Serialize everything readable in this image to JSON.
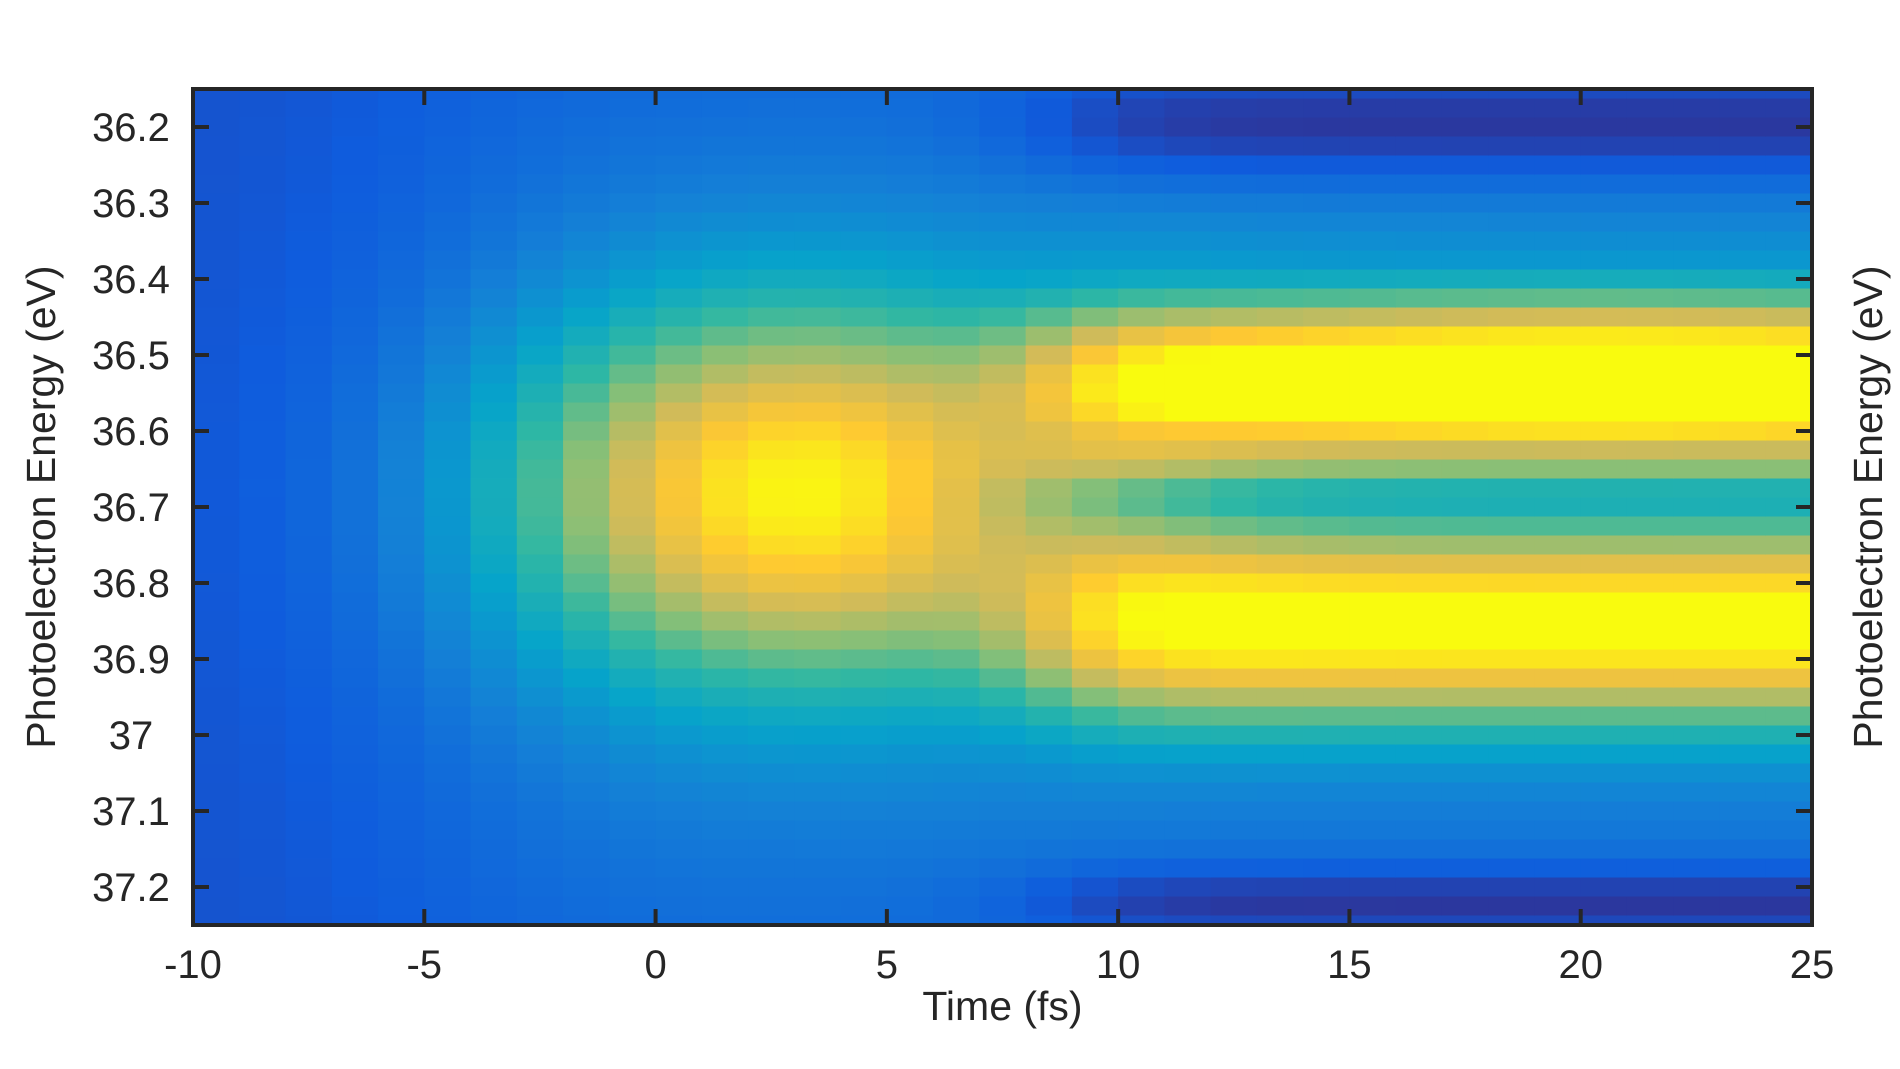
{
  "chart_data": {
    "type": "heatmap",
    "title": "",
    "xlabel": "Time (fs)",
    "ylabel": "Photoelectron Energy (eV)",
    "ylabel_right": "Photoelectron Energy (eV)",
    "xlim": [
      -10,
      25
    ],
    "ylim": [
      36.15,
      37.25
    ],
    "y_reversed": true,
    "x_ticks": [
      -10,
      -5,
      0,
      5,
      10,
      15,
      20,
      25
    ],
    "x_tick_labels": [
      "-10",
      "-5",
      "0",
      "5",
      "10",
      "15",
      "20",
      "25"
    ],
    "y_ticks": [
      36.2,
      36.3,
      36.4,
      36.5,
      36.6,
      36.7,
      36.8,
      36.9,
      37,
      37.1,
      37.2
    ],
    "y_tick_labels": [
      "36.2",
      "36.3",
      "36.4",
      "36.5",
      "36.6",
      "36.7",
      "36.8",
      "36.9",
      "37",
      "37.1",
      "37.2"
    ],
    "grid": false,
    "colormap": "parula",
    "colorscale": [
      "#352a87",
      "#0f5cdd",
      "#1481d6",
      "#06a4ca",
      "#2eb7a4",
      "#87bf77",
      "#d1bb59",
      "#fec832",
      "#f9fb0e"
    ],
    "intensity_max": 1.0,
    "x": [
      -9.5,
      -8.5,
      -7.5,
      -6.5,
      -5.5,
      -4.5,
      -3.5,
      -2.5,
      -1.5,
      -0.5,
      0.5,
      1.5,
      2.5,
      3.5,
      4.5,
      5.5,
      6.5,
      7.5,
      8.5,
      9.5,
      10.5,
      11.5,
      12.5,
      13.5,
      14.5,
      15.5,
      16.5,
      17.5,
      18.5,
      19.5,
      20.5,
      21.5,
      22.5,
      23.5,
      24.5
    ],
    "y": [
      36.15,
      36.175,
      36.2,
      36.225,
      36.25,
      36.275,
      36.3,
      36.325,
      36.35,
      36.375,
      36.4,
      36.425,
      36.45,
      36.475,
      36.5,
      36.525,
      36.55,
      36.575,
      36.6,
      36.625,
      36.65,
      36.675,
      36.7,
      36.725,
      36.75,
      36.775,
      36.8,
      36.825,
      36.85,
      36.875,
      36.9,
      36.925,
      36.95,
      36.975,
      37.0,
      37.025,
      37.05,
      37.075,
      37.1,
      37.125,
      37.15,
      37.175,
      37.2,
      37.225,
      37.25
    ],
    "bands": {
      "upper_peak_energy_eV": 36.53,
      "gap_energy_eV": 36.69,
      "lower_peak_energy_eV": 36.85,
      "early_peak_energy_eV": 36.67,
      "early_peak_time_fs": 3,
      "max_intensity_time_fs": 21
    }
  }
}
